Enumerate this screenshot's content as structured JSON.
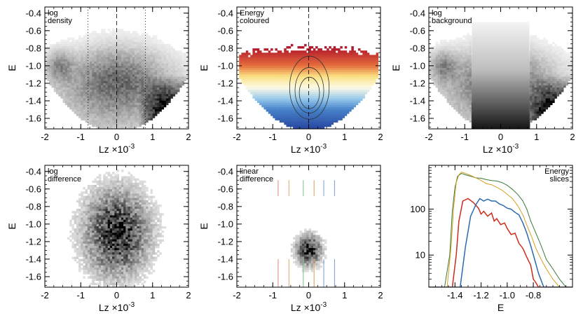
{
  "chart_data": [
    {
      "id": "p1",
      "type": "heatmap",
      "annotation": [
        "log",
        "density"
      ],
      "xlabel": "Lz ×10",
      "xlabel_exp": "-3",
      "ylabel": "E",
      "xlim": [
        -2,
        2
      ],
      "ylim": [
        -1.72,
        -0.33
      ],
      "xticks": [
        "-2",
        "-1",
        "0",
        "1",
        "2"
      ],
      "yticks": [
        "-0.4",
        "-0.6",
        "-0.8",
        "-1.0",
        "-1.2",
        "-1.4",
        "-1.6"
      ],
      "colormap": "greys-log",
      "guides": {
        "dashed_x": [
          0
        ],
        "dotted_x": [
          -0.8,
          0.8
        ]
      }
    },
    {
      "id": "p2",
      "type": "heatmap",
      "annotation": [
        "Energy",
        "coloured"
      ],
      "xlabel": "Lz ×10",
      "xlabel_exp": "-3",
      "ylabel": "E",
      "xlim": [
        -2,
        2
      ],
      "ylim": [
        -1.72,
        -0.33
      ],
      "xticks": [
        "-2",
        "-1",
        "0",
        "1",
        "2"
      ],
      "yticks": [
        "-0.4",
        "-0.6",
        "-0.8",
        "-1.0",
        "-1.2",
        "-1.4",
        "-1.6"
      ],
      "colormap": "energy-redwhiteblue",
      "colors": {
        "high_energy": "#b2182b",
        "mid": "#fdf5c8",
        "low_energy": "#2d4f9e"
      },
      "contours": 3,
      "guides": {
        "dashed_x": [
          0
        ]
      }
    },
    {
      "id": "p3",
      "type": "heatmap",
      "annotation": [
        "log",
        "background"
      ],
      "xlabel": "Lz ×10",
      "xlabel_exp": "-3",
      "ylabel": "E",
      "xlim": [
        -2,
        2
      ],
      "ylim": [
        -1.72,
        -0.33
      ],
      "xticks": [
        "-2",
        "-1",
        "0",
        "1",
        "2"
      ],
      "yticks": [
        "-0.4",
        "-0.6",
        "-0.8",
        "-1.0",
        "-1.2",
        "-1.4",
        "-1.6"
      ],
      "colormap": "greys-log",
      "background_band_x": [
        -0.8,
        0.8
      ]
    },
    {
      "id": "p4",
      "type": "heatmap",
      "annotation": [
        "log",
        "difference"
      ],
      "xlabel": "Lz ×10",
      "xlabel_exp": "-3",
      "ylabel": "E",
      "xlim": [
        -2,
        2
      ],
      "ylim": [
        -1.72,
        -0.33
      ],
      "xticks": [
        "-2",
        "-1",
        "0",
        "1",
        "2"
      ],
      "yticks": [
        "-0.4",
        "-0.6",
        "-0.8",
        "-1.0",
        "-1.2",
        "-1.4",
        "-1.6"
      ],
      "colormap": "greys-log"
    },
    {
      "id": "p5",
      "type": "heatmap",
      "annotation": [
        "linear",
        "difference"
      ],
      "xlabel": "Lz ×10",
      "xlabel_exp": "-3",
      "ylabel": "E",
      "xlim": [
        -2,
        2
      ],
      "ylim": [
        -1.72,
        -0.33
      ],
      "xticks": [
        "-2",
        "-1",
        "0",
        "1",
        "2"
      ],
      "yticks": [
        "-0.4",
        "-0.6",
        "-0.8",
        "-1.0",
        "-1.2",
        "-1.4",
        "-1.6"
      ],
      "colormap": "greys-linear",
      "guide_lines": [
        {
          "x": -0.85,
          "color": "#e8877e"
        },
        {
          "x": -0.55,
          "color": "#e0a85a"
        },
        {
          "x": -0.15,
          "color": "#7fbf7f"
        },
        {
          "x": 0.15,
          "color": "#d89a50"
        },
        {
          "x": 0.42,
          "color": "#6f9fd8"
        },
        {
          "x": 0.72,
          "color": "#6f9fd8"
        }
      ]
    },
    {
      "id": "p6",
      "type": "line",
      "annotation": [
        "Energy",
        "slices"
      ],
      "xlabel": "E",
      "ylabel": "",
      "xlim": [
        -1.6,
        -0.5
      ],
      "ylim": [
        2,
        900
      ],
      "ylog": true,
      "xticks": [
        "-1.4",
        "-1.2",
        "-1.0",
        "-0.8"
      ],
      "yticks": [
        "10",
        "100"
      ],
      "series": [
        {
          "color": "#3a7a3a",
          "x": [
            -1.6,
            -1.48,
            -1.44,
            -1.42,
            -1.4,
            -1.38,
            -1.35,
            -1.32,
            -1.28,
            -1.24,
            -1.2,
            -1.16,
            -1.12,
            -1.08,
            -1.04,
            -1.0,
            -0.96,
            -0.92,
            -0.88,
            -0.85,
            -0.82,
            -0.78,
            -0.74,
            -0.7,
            -0.65,
            -0.6,
            -0.55,
            -0.5
          ],
          "y": [
            2,
            2,
            10,
            90,
            300,
            520,
            600,
            560,
            520,
            480,
            470,
            440,
            420,
            410,
            380,
            330,
            270,
            210,
            150,
            100,
            55,
            30,
            16,
            8,
            5,
            3,
            2,
            2
          ]
        },
        {
          "color": "#d8a020",
          "x": [
            -1.6,
            -1.46,
            -1.43,
            -1.41,
            -1.39,
            -1.37,
            -1.35,
            -1.32,
            -1.28,
            -1.24,
            -1.2,
            -1.16,
            -1.12,
            -1.08,
            -1.04,
            -1.0,
            -0.96,
            -0.92,
            -0.88,
            -0.85,
            -0.82,
            -0.78,
            -0.74,
            -0.7,
            -0.65,
            -0.6,
            -0.55,
            -0.5
          ],
          "y": [
            2,
            2,
            15,
            110,
            380,
            560,
            640,
            600,
            540,
            480,
            420,
            360,
            340,
            300,
            260,
            210,
            170,
            120,
            75,
            45,
            28,
            14,
            8,
            5,
            3,
            2,
            2,
            2
          ]
        },
        {
          "color": "#cc2a1a",
          "x": [
            -1.6,
            -1.42,
            -1.39,
            -1.37,
            -1.34,
            -1.3,
            -1.26,
            -1.22,
            -1.2,
            -1.18,
            -1.15,
            -1.12,
            -1.1,
            -1.08,
            -1.05,
            -1.02,
            -1.0,
            -0.97,
            -0.94,
            -0.91,
            -0.88,
            -0.85,
            -0.82,
            -0.8,
            -0.78,
            -0.76,
            -0.72,
            -0.68,
            -0.64,
            -0.6,
            -0.56,
            -0.52,
            -0.5
          ],
          "y": [
            2,
            2,
            10,
            55,
            150,
            170,
            140,
            105,
            78,
            90,
            70,
            82,
            55,
            62,
            46,
            50,
            38,
            28,
            30,
            18,
            14,
            9,
            6,
            3,
            2.5,
            2,
            2,
            2,
            2,
            2,
            2,
            2,
            2
          ]
        },
        {
          "color": "#2a6ab0",
          "x": [
            -1.6,
            -1.5,
            -1.45,
            -1.4,
            -1.36,
            -1.32,
            -1.28,
            -1.24,
            -1.21,
            -1.18,
            -1.15,
            -1.12,
            -1.09,
            -1.06,
            -1.03,
            -1.0,
            -0.97,
            -0.94,
            -0.91,
            -0.88,
            -0.85,
            -0.82,
            -0.79,
            -0.76,
            -0.72,
            -0.68,
            -0.64,
            -0.6,
            -0.55,
            -0.5
          ],
          "y": [
            2,
            2,
            2,
            2,
            2,
            15,
            70,
            125,
            170,
            150,
            165,
            150,
            150,
            130,
            120,
            105,
            100,
            85,
            75,
            50,
            30,
            16,
            8,
            4,
            2,
            2,
            2,
            2,
            2,
            2
          ]
        }
      ]
    }
  ]
}
